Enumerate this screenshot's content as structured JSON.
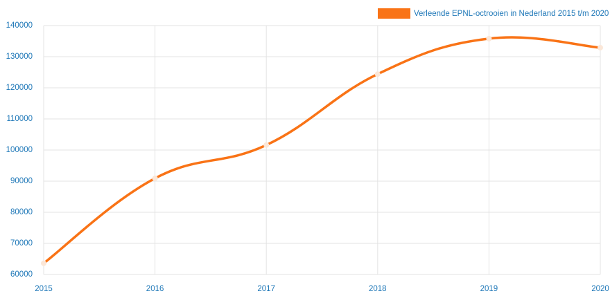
{
  "chart_data": {
    "type": "line",
    "categories": [
      "2015",
      "2016",
      "2017",
      "2018",
      "2019",
      "2020"
    ],
    "series": [
      {
        "name": "Verleende EPNL-octrooien in Nederland 2015 t/m 2020",
        "color": "#f97316",
        "values": [
          63600,
          90900,
          101600,
          124400,
          135800,
          132900
        ]
      }
    ],
    "ylim": [
      60000,
      140000
    ],
    "yticks": [
      60000,
      70000,
      80000,
      90000,
      100000,
      110000,
      120000,
      130000,
      140000
    ],
    "grid": true,
    "legend": "top-right"
  }
}
